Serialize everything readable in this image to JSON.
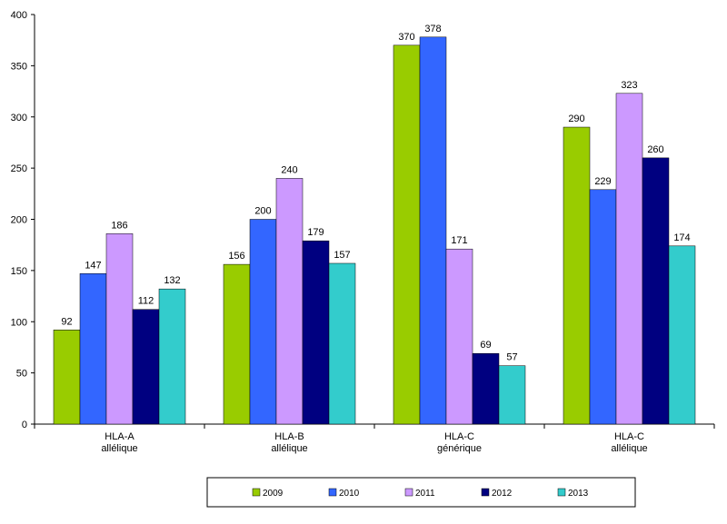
{
  "chart_data": {
    "type": "bar",
    "categories": [
      [
        "HLA-A",
        "allélique"
      ],
      [
        "HLA-B",
        "allélique"
      ],
      [
        "HLA-C",
        "générique"
      ],
      [
        "HLA-C",
        "allélique"
      ]
    ],
    "series": [
      {
        "name": "2009",
        "color": "#99cc00",
        "values": [
          92,
          156,
          370,
          290
        ]
      },
      {
        "name": "2010",
        "color": "#3366ff",
        "values": [
          147,
          200,
          378,
          229
        ]
      },
      {
        "name": "2011",
        "color": "#cc99ff",
        "values": [
          186,
          240,
          171,
          323
        ]
      },
      {
        "name": "2012",
        "color": "#000080",
        "values": [
          112,
          179,
          69,
          260
        ]
      },
      {
        "name": "2013",
        "color": "#33cccc",
        "values": [
          132,
          157,
          57,
          174
        ]
      }
    ],
    "ylim": [
      0,
      400
    ],
    "yticks": [
      0,
      50,
      100,
      150,
      200,
      250,
      300,
      350,
      400
    ],
    "grid": false,
    "legend_position": "bottom",
    "title": "",
    "xlabel": "",
    "ylabel": ""
  }
}
